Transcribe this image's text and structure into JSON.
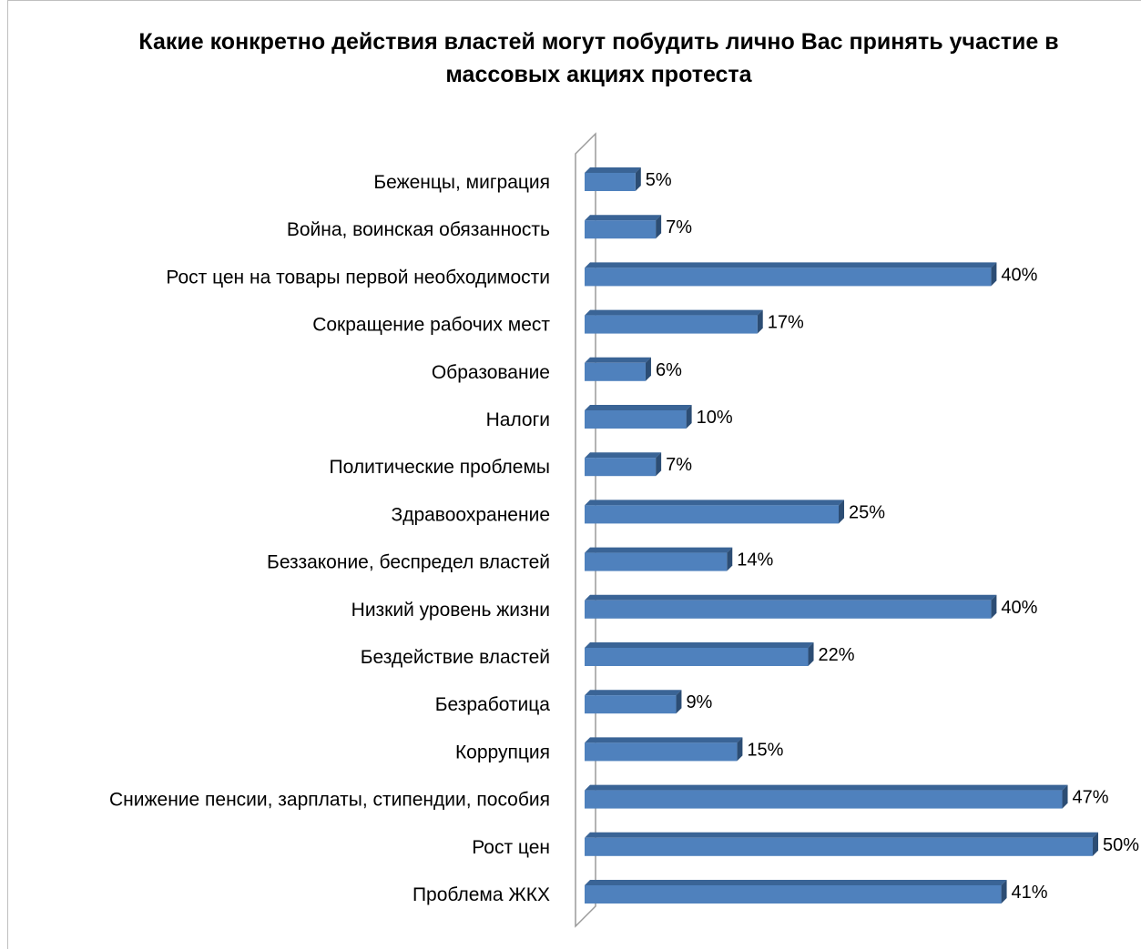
{
  "chart_data": {
    "type": "bar",
    "orientation": "horizontal",
    "title": "Какие конкретно действия властей могут побудить лично Вас принять участие в массовых акциях протеста",
    "categories": [
      "Беженцы, миграция",
      "Война, воинская обязанность",
      "Рост цен на товары первой необходимости",
      "Сокращение рабочих мест",
      "Образование",
      "Налоги",
      "Политические проблемы",
      "Здравоохранение",
      "Беззаконие, беспредел властей",
      "Низкий уровень жизни",
      "Бездействие властей",
      "Безработица",
      "Коррупция",
      "Снижение пенсии,  зарплаты,  стипендии, пособия",
      "Рост цен",
      "Проблема ЖКХ"
    ],
    "values": [
      5,
      7,
      40,
      17,
      6,
      10,
      7,
      25,
      14,
      40,
      22,
      9,
      15,
      47,
      50,
      41
    ],
    "value_labels": [
      "5%",
      "7%",
      "40%",
      "17%",
      "6%",
      "10%",
      "7%",
      "25%",
      "14%",
      "40%",
      "22%",
      "9%",
      "15%",
      "47%",
      "50%",
      "41%"
    ],
    "xlim": [
      0,
      50
    ],
    "grid": false,
    "legend": "none",
    "colors": {
      "bar_front": "#4f81bd",
      "bar_top": "#3a6496",
      "bar_side": "#2c4d74",
      "axis_wall": "#9a9a9a"
    }
  }
}
